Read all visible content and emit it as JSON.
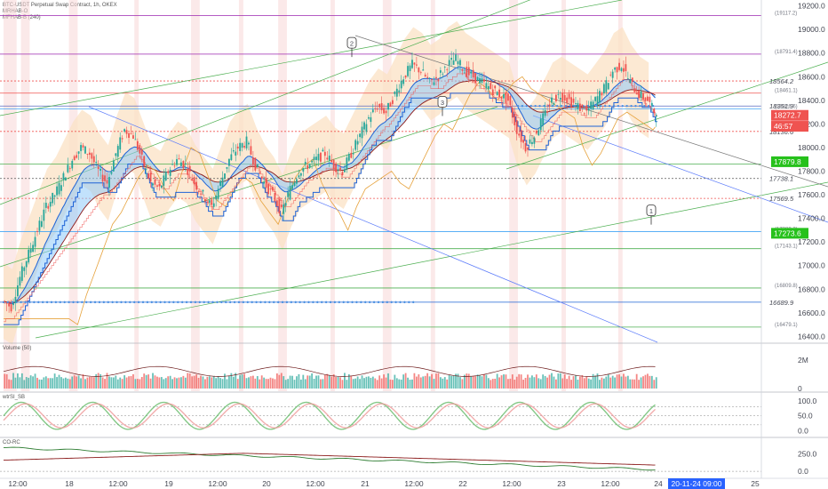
{
  "header": {
    "title": "BTC-USDT Perpetual Swap Contract, 1h, OKEX",
    "lines": [
      "MRHAB-O",
      "MFHAB-B (240)"
    ]
  },
  "price_axis": {
    "ticks": [
      "19200.0",
      "19000.0",
      "18800.0",
      "18600.0",
      "18400.0",
      "18200.0",
      "18000.0",
      "17800.0",
      "17600.0",
      "17400.0",
      "17200.0",
      "17000.0",
      "16800.0",
      "16600.0",
      "16400.0"
    ],
    "min": 16350,
    "max": 19250
  },
  "time_axis": {
    "ticks": [
      "12:00",
      "18",
      "12:00",
      "19",
      "12:00",
      "20",
      "12:00",
      "21",
      "12:00",
      "22",
      "12:00",
      "23",
      "12:00",
      "24",
      "25"
    ],
    "cursor_label": "20-11-24  09:00"
  },
  "price_badges": [
    {
      "text": "18272.7",
      "color": "#ef5350",
      "price": 18272.7
    },
    {
      "text": "46:57",
      "color": "#ef5350",
      "price": 18180
    },
    {
      "text": "17879.8",
      "color": "#26c11b",
      "price": 17879.8
    },
    {
      "text": "17273.6",
      "color": "#26c11b",
      "price": 17273.6
    }
  ],
  "level_labels": [
    {
      "text": "18564.2",
      "price": 18564.2,
      "color": "#c62828"
    },
    {
      "text": "18351.9",
      "price": 18351.9,
      "color": "#c62828"
    },
    {
      "text": "18136.6",
      "price": 18136.6,
      "color": "#c62828"
    },
    {
      "text": "17738.1",
      "price": 17738.1,
      "color": "#c62828"
    },
    {
      "text": "17569.5",
      "price": 17569.5,
      "color": "#c62828"
    },
    {
      "text": "16689.9",
      "price": 16689.9,
      "color": "#1565c0"
    }
  ],
  "small_labels": [
    {
      "text": "(19117.2)",
      "price": 19117.2
    },
    {
      "text": "(18791.4)",
      "price": 18791.4
    },
    {
      "text": "(18461.1)",
      "price": 18461.1
    },
    {
      "text": "(18326.6)",
      "price": 18326.6
    },
    {
      "text": "(17859.6)",
      "price": 17859.6
    },
    {
      "text": "(17288.2)",
      "price": 17288.2
    },
    {
      "text": "(17143.1)",
      "price": 17143.1
    },
    {
      "text": "(16809.8)",
      "price": 16809.8
    },
    {
      "text": "(16479.1)",
      "price": 16479.1
    }
  ],
  "callouts": [
    {
      "text": "2",
      "price": 18880
    },
    {
      "text": "3",
      "price": 18380
    },
    {
      "text": "1",
      "price": 17460
    }
  ],
  "panes": [
    {
      "name": "Volume (50)",
      "ticks": [
        "2M",
        "0"
      ],
      "range": [
        0,
        3
      ]
    },
    {
      "name": "wtrSI_SB",
      "ticks": [
        "100.0",
        "50.0",
        "0.0"
      ],
      "range": [
        -10,
        120
      ]
    },
    {
      "name": "CO-RC",
      "ticks": [
        "250.0",
        "0.0"
      ],
      "range": [
        -50,
        450
      ]
    }
  ],
  "colors": {
    "up": "#26a69a",
    "down": "#ef5350",
    "ema_fill": "#90caf9",
    "band_fill": "#fbe1c4",
    "green_line": "#4caf50",
    "blue_line": "#1e63d6",
    "dark_red": "#8b1a1a",
    "orange": "#e6a23c",
    "purple": "#9c27b0"
  },
  "chart_data": {
    "type": "candlestick",
    "symbol": "BTC-USDT Perpetual Swap Contract",
    "interval": "1h",
    "exchange": "OKEX",
    "y_range": [
      16350,
      19250
    ],
    "price_path": [
      [
        0,
        16700
      ],
      [
        4,
        16650
      ],
      [
        8,
        16900
      ],
      [
        12,
        17100
      ],
      [
        16,
        17300
      ],
      [
        20,
        17500
      ],
      [
        24,
        17600
      ],
      [
        28,
        17750
      ],
      [
        32,
        17900
      ],
      [
        36,
        18000
      ],
      [
        40,
        17950
      ],
      [
        44,
        17800
      ],
      [
        48,
        17700
      ],
      [
        52,
        17950
      ],
      [
        56,
        18150
      ],
      [
        60,
        18100
      ],
      [
        64,
        17900
      ],
      [
        68,
        17700
      ],
      [
        72,
        17650
      ],
      [
        76,
        17800
      ],
      [
        80,
        17900
      ],
      [
        84,
        17850
      ],
      [
        88,
        17700
      ],
      [
        92,
        17600
      ],
      [
        96,
        17500
      ],
      [
        100,
        17700
      ],
      [
        104,
        17900
      ],
      [
        108,
        18000
      ],
      [
        112,
        18050
      ],
      [
        116,
        17850
      ],
      [
        120,
        17700
      ],
      [
        124,
        17600
      ],
      [
        128,
        17450
      ],
      [
        132,
        17650
      ],
      [
        136,
        17800
      ],
      [
        140,
        17850
      ],
      [
        144,
        17900
      ],
      [
        148,
        17950
      ],
      [
        152,
        17850
      ],
      [
        156,
        17800
      ],
      [
        160,
        17950
      ],
      [
        164,
        18100
      ],
      [
        168,
        18250
      ],
      [
        172,
        18350
      ],
      [
        176,
        18300
      ],
      [
        180,
        18450
      ],
      [
        184,
        18600
      ],
      [
        188,
        18700
      ],
      [
        192,
        18650
      ],
      [
        196,
        18550
      ],
      [
        200,
        18600
      ],
      [
        204,
        18700
      ],
      [
        208,
        18750
      ],
      [
        212,
        18650
      ],
      [
        216,
        18600
      ],
      [
        220,
        18550
      ],
      [
        224,
        18500
      ],
      [
        228,
        18450
      ],
      [
        232,
        18400
      ],
      [
        236,
        18150
      ],
      [
        240,
        18000
      ],
      [
        244,
        18100
      ],
      [
        248,
        18250
      ],
      [
        252,
        18400
      ],
      [
        256,
        18450
      ],
      [
        260,
        18400
      ],
      [
        264,
        18350
      ],
      [
        268,
        18300
      ],
      [
        272,
        18400
      ],
      [
        276,
        18500
      ],
      [
        280,
        18650
      ],
      [
        284,
        18700
      ],
      [
        288,
        18550
      ],
      [
        292,
        18450
      ],
      [
        296,
        18400
      ],
      [
        300,
        18272.7
      ]
    ],
    "horizontal_levels": [
      19117.2,
      18791.4,
      18564.2,
      18461.1,
      18351.9,
      18326.6,
      18136.6,
      17859.6,
      17738.1,
      17569.5,
      17288.2,
      17143.1,
      16809.8,
      16689.9,
      16479.1
    ],
    "last_price": 18272.7
  }
}
